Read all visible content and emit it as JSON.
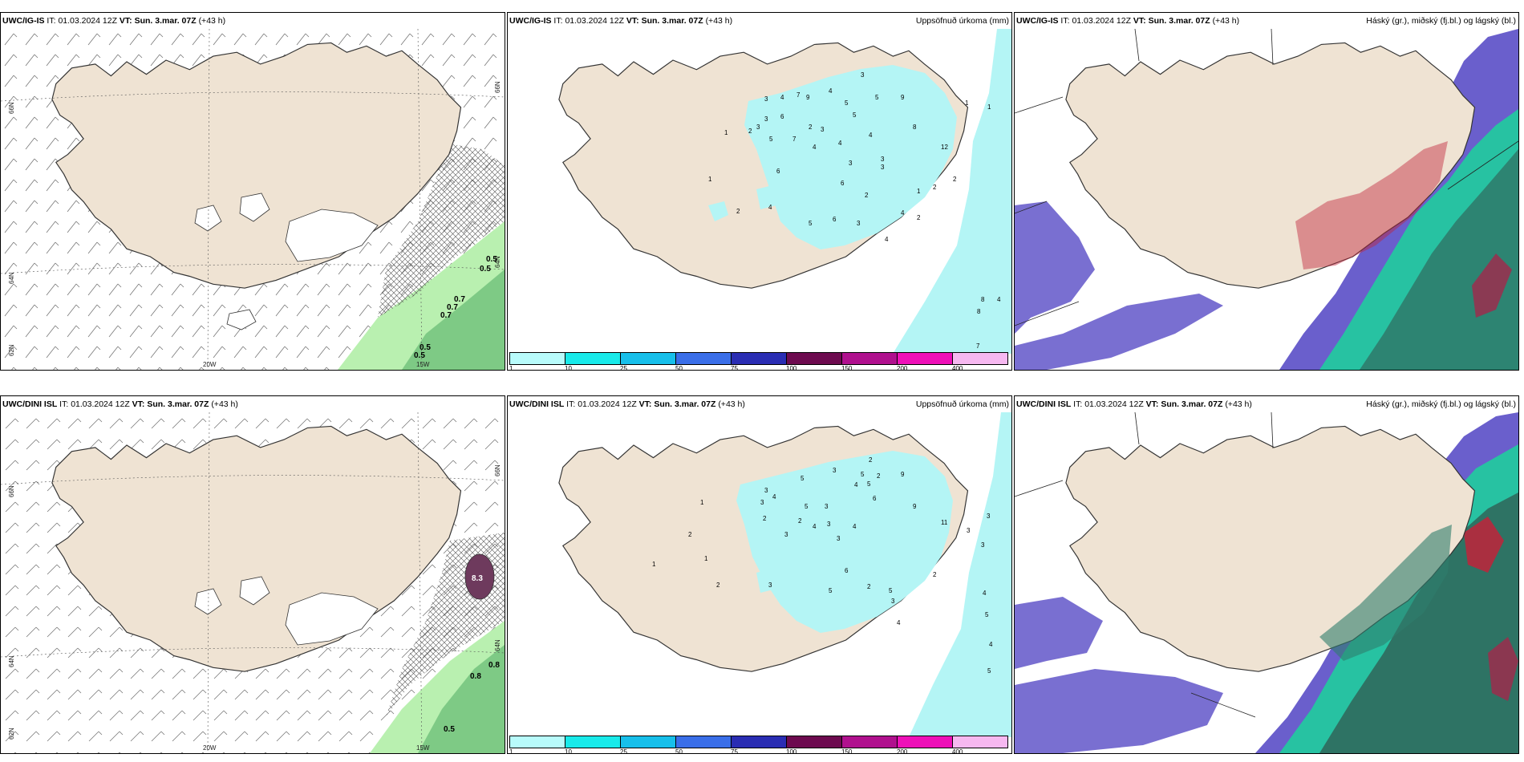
{
  "header": {
    "ig_model": "UWC/IG-IS",
    "dini_model": "UWC/DINI ISL",
    "it_label": "IT:",
    "it_value": "01.03.2024 12Z",
    "vt_label": "VT:",
    "vt_value": "Sun. 3.mar. 07Z",
    "lead": "(+43 h)",
    "precip_title": "Uppsöfnuð úrkoma (mm)",
    "cloud_title": "Háský (gr.), miðský (fj.bl.) og lágský (bl.)"
  },
  "axis_labels": {
    "lon_20w": "20W",
    "lon_15w": "15W",
    "lat_66n": "66N",
    "lat_64n": "64N",
    "lat_62n": "62N"
  },
  "colorbar": {
    "ticks": [
      "1",
      "10",
      "25",
      "50",
      "75",
      "100",
      "150",
      "200",
      "400"
    ],
    "colors": [
      "#b8fbfb",
      "#19eaea",
      "#17bfea",
      "#3a6ee8",
      "#2a2db3",
      "#6d0a4f",
      "#b0108e",
      "#ee10b8",
      "#f6b8f0"
    ]
  },
  "wind_panel_values": {
    "ig": [
      "0.5",
      "0.5",
      "0.7",
      "0.7",
      "0.7",
      "0.5",
      "0.5"
    ],
    "dini": [
      "8.3",
      "0.8",
      "0.8",
      "0.5"
    ]
  },
  "precip_values": {
    "ig": [
      "3",
      "4",
      "7",
      "9",
      "4",
      "5",
      "3",
      "5",
      "9",
      "3",
      "6",
      "3",
      "2",
      "5",
      "7",
      "2",
      "3",
      "4",
      "5",
      "1",
      "1",
      "4",
      "4",
      "3",
      "3",
      "8",
      "12",
      "6",
      "6",
      "3",
      "2",
      "2",
      "1",
      "1",
      "2",
      "4",
      "5",
      "6",
      "3",
      "4",
      "2",
      "4",
      "2",
      "4",
      "8",
      "8",
      "7",
      "1"
    ],
    "dini": [
      "2",
      "5",
      "3",
      "5",
      "2",
      "9",
      "4",
      "5",
      "3",
      "4",
      "3",
      "5",
      "6",
      "3",
      "2",
      "2",
      "4",
      "3",
      "4",
      "3",
      "3",
      "9",
      "11",
      "3",
      "3",
      "1",
      "2",
      "1",
      "1",
      "2",
      "3",
      "5",
      "6",
      "2",
      "5",
      "3",
      "4",
      "4",
      "5",
      "5",
      "2",
      "3",
      "4"
    ]
  },
  "colors": {
    "land": "#efe3d3",
    "precip_light": "#b4f5f5",
    "cloud_high": "#6a5fcc",
    "cloud_mid_green": "#1bd39a",
    "cloud_red": "#c0233a",
    "wind_green": "#b9f0b0",
    "wind_green_dark": "#6fc07a"
  }
}
